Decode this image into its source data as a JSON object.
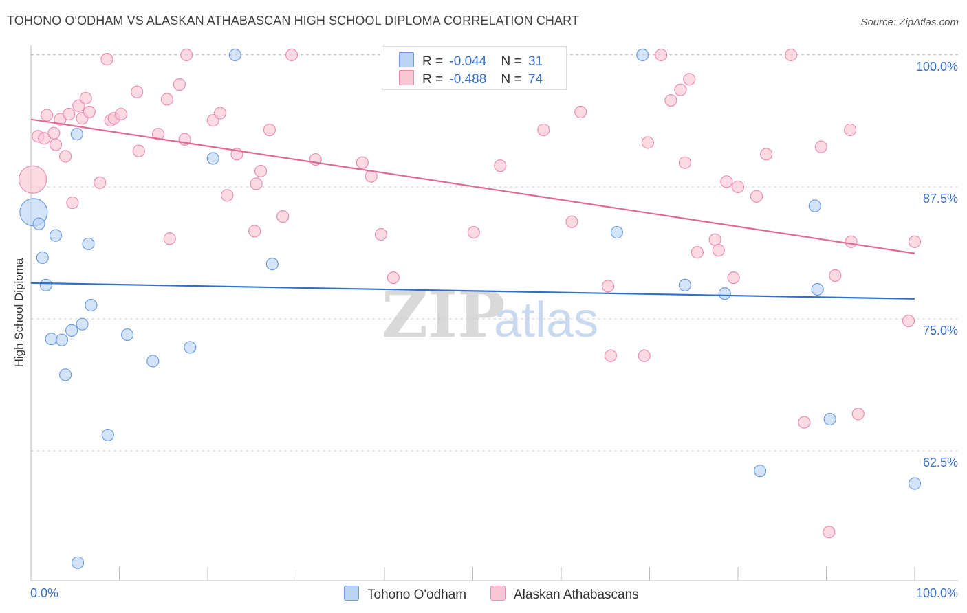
{
  "title": "TOHONO O'ODHAM VS ALASKAN ATHABASCAN HIGH SCHOOL DIPLOMA CORRELATION CHART",
  "source": "Source: ZipAtlas.com",
  "watermark": {
    "zip": "ZIP",
    "atlas": "atlas"
  },
  "colors": {
    "blue_fill": "#bcd4f4",
    "blue_stroke": "#6f9ee0",
    "blue_line": "#2f6fd0",
    "pink_fill": "#f9c6d6",
    "pink_stroke": "#ea8fae",
    "pink_line": "#e06a93",
    "axis_text": "#3a6fc4",
    "grid": "#cccccc"
  },
  "legend_top": {
    "rows": [
      {
        "series": "blue",
        "r_label": "R =",
        "r_value": "-0.044",
        "n_label": "N =",
        "n_value": "31"
      },
      {
        "series": "pink",
        "r_label": "R =",
        "r_value": "-0.488",
        "n_label": "N =",
        "n_value": "74"
      }
    ]
  },
  "chart_data": {
    "type": "scatter",
    "title": "TOHONO O'ODHAM VS ALASKAN ATHABASCAN HIGH SCHOOL DIPLOMA CORRELATION CHART",
    "xlabel": "",
    "ylabel": "High School Diploma",
    "xlim": [
      0,
      100
    ],
    "ylim": [
      51.5,
      101.5
    ],
    "x_tick_labels": [
      "0.0%",
      "100.0%"
    ],
    "y_ticks": [
      62.5,
      75.0,
      87.5,
      100.0
    ],
    "y_tick_labels": [
      "62.5%",
      "75.0%",
      "87.5%",
      "100.0%"
    ],
    "grid": "horizontal dashed",
    "legend": "top-center and bottom",
    "series": [
      {
        "name": "Tohono O'odham",
        "color": "blue",
        "r": -0.044,
        "n": 31,
        "trend": {
          "x": [
            0,
            100
          ],
          "y": [
            78.4,
            76.9
          ]
        },
        "points": [
          {
            "x": 0.3,
            "y": 85.1,
            "big": true
          },
          {
            "x": 0.9,
            "y": 84.0
          },
          {
            "x": 2.8,
            "y": 82.9
          },
          {
            "x": 1.3,
            "y": 80.8
          },
          {
            "x": 1.7,
            "y": 78.2
          },
          {
            "x": 2.3,
            "y": 73.1
          },
          {
            "x": 3.5,
            "y": 73.0
          },
          {
            "x": 4.6,
            "y": 73.9
          },
          {
            "x": 5.8,
            "y": 74.5
          },
          {
            "x": 6.8,
            "y": 76.3
          },
          {
            "x": 3.9,
            "y": 69.7
          },
          {
            "x": 5.2,
            "y": 92.5
          },
          {
            "x": 6.5,
            "y": 82.1
          },
          {
            "x": 8.7,
            "y": 64.0
          },
          {
            "x": 10.9,
            "y": 73.5
          },
          {
            "x": 13.8,
            "y": 71.0
          },
          {
            "x": 18.0,
            "y": 72.3
          },
          {
            "x": 20.6,
            "y": 90.2
          },
          {
            "x": 23.1,
            "y": 100.0
          },
          {
            "x": 27.3,
            "y": 80.2
          },
          {
            "x": 5.3,
            "y": 51.9
          },
          {
            "x": 47.6,
            "y": 100.0
          },
          {
            "x": 66.3,
            "y": 83.2
          },
          {
            "x": 69.2,
            "y": 100.0
          },
          {
            "x": 74.0,
            "y": 78.2
          },
          {
            "x": 78.5,
            "y": 77.4
          },
          {
            "x": 82.5,
            "y": 60.6
          },
          {
            "x": 88.7,
            "y": 85.7
          },
          {
            "x": 89.0,
            "y": 77.8
          },
          {
            "x": 90.4,
            "y": 65.5
          },
          {
            "x": 100.0,
            "y": 59.4
          }
        ]
      },
      {
        "name": "Alaskan Athabascans",
        "color": "pink",
        "r": -0.488,
        "n": 74,
        "trend": {
          "x": [
            0,
            100
          ],
          "y": [
            93.9,
            81.2
          ]
        },
        "points": [
          {
            "x": 0.2,
            "y": 88.2,
            "big": true
          },
          {
            "x": 0.8,
            "y": 92.3
          },
          {
            "x": 1.5,
            "y": 92.1
          },
          {
            "x": 1.8,
            "y": 94.3
          },
          {
            "x": 2.6,
            "y": 92.6
          },
          {
            "x": 2.8,
            "y": 91.5
          },
          {
            "x": 3.3,
            "y": 93.9
          },
          {
            "x": 3.9,
            "y": 90.4
          },
          {
            "x": 4.3,
            "y": 94.4
          },
          {
            "x": 4.7,
            "y": 86.0
          },
          {
            "x": 5.4,
            "y": 95.2
          },
          {
            "x": 5.8,
            "y": 94.0
          },
          {
            "x": 6.2,
            "y": 95.9
          },
          {
            "x": 6.6,
            "y": 94.6
          },
          {
            "x": 7.8,
            "y": 87.9
          },
          {
            "x": 8.6,
            "y": 99.6
          },
          {
            "x": 9.0,
            "y": 93.8
          },
          {
            "x": 9.4,
            "y": 94.0
          },
          {
            "x": 10.2,
            "y": 94.4
          },
          {
            "x": 12.0,
            "y": 96.5
          },
          {
            "x": 12.2,
            "y": 90.9
          },
          {
            "x": 14.4,
            "y": 92.5
          },
          {
            "x": 15.4,
            "y": 95.8
          },
          {
            "x": 15.7,
            "y": 82.6
          },
          {
            "x": 16.8,
            "y": 97.2
          },
          {
            "x": 17.4,
            "y": 92.0
          },
          {
            "x": 17.6,
            "y": 100.0
          },
          {
            "x": 20.6,
            "y": 93.8
          },
          {
            "x": 21.4,
            "y": 94.5
          },
          {
            "x": 22.2,
            "y": 86.7
          },
          {
            "x": 23.3,
            "y": 90.6
          },
          {
            "x": 25.3,
            "y": 83.3
          },
          {
            "x": 25.5,
            "y": 87.8
          },
          {
            "x": 26.0,
            "y": 89.0
          },
          {
            "x": 27.0,
            "y": 92.9
          },
          {
            "x": 28.5,
            "y": 84.7
          },
          {
            "x": 29.5,
            "y": 100.0
          },
          {
            "x": 32.2,
            "y": 90.1
          },
          {
            "x": 37.5,
            "y": 89.8
          },
          {
            "x": 38.5,
            "y": 88.5
          },
          {
            "x": 39.6,
            "y": 83.0
          },
          {
            "x": 41.0,
            "y": 78.9
          },
          {
            "x": 50.1,
            "y": 83.2
          },
          {
            "x": 53.1,
            "y": 89.5
          },
          {
            "x": 58.0,
            "y": 92.9
          },
          {
            "x": 61.2,
            "y": 84.2
          },
          {
            "x": 62.2,
            "y": 94.6
          },
          {
            "x": 65.3,
            "y": 78.1
          },
          {
            "x": 65.6,
            "y": 71.5
          },
          {
            "x": 69.4,
            "y": 71.5
          },
          {
            "x": 69.8,
            "y": 91.7
          },
          {
            "x": 71.3,
            "y": 100.0
          },
          {
            "x": 72.4,
            "y": 95.7
          },
          {
            "x": 73.5,
            "y": 96.7
          },
          {
            "x": 74.0,
            "y": 89.8
          },
          {
            "x": 74.5,
            "y": 97.7
          },
          {
            "x": 75.4,
            "y": 81.3
          },
          {
            "x": 77.4,
            "y": 82.5
          },
          {
            "x": 77.8,
            "y": 81.5
          },
          {
            "x": 78.7,
            "y": 88.0
          },
          {
            "x": 79.5,
            "y": 78.9
          },
          {
            "x": 80.0,
            "y": 87.5
          },
          {
            "x": 82.1,
            "y": 86.6
          },
          {
            "x": 83.2,
            "y": 90.6
          },
          {
            "x": 86.0,
            "y": 100.0
          },
          {
            "x": 87.5,
            "y": 65.2
          },
          {
            "x": 89.4,
            "y": 91.3
          },
          {
            "x": 90.3,
            "y": 54.8
          },
          {
            "x": 91.0,
            "y": 79.1
          },
          {
            "x": 92.8,
            "y": 82.3
          },
          {
            "x": 92.7,
            "y": 92.9
          },
          {
            "x": 93.6,
            "y": 66.0
          },
          {
            "x": 99.3,
            "y": 74.8
          },
          {
            "x": 100.0,
            "y": 82.3
          }
        ]
      }
    ]
  }
}
